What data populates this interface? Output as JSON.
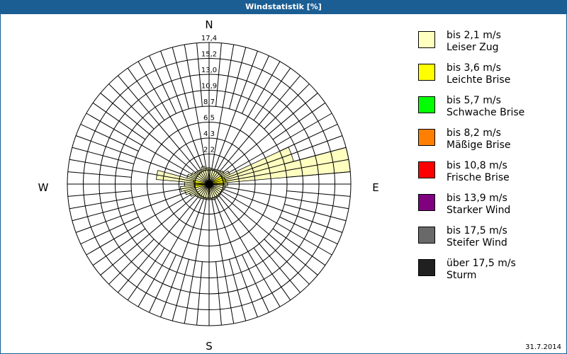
{
  "title": "Windstatistik [%]",
  "date": "31.7.2014",
  "chart_data": {
    "type": "polar-bar",
    "title": "Windstatistik [%]",
    "directions": [
      "N",
      "E",
      "S",
      "W"
    ],
    "ring_labels": [
      "2,2",
      "4,3",
      "6,5",
      "8,7",
      "10,9",
      "13,0",
      "15,2",
      "17,4"
    ],
    "rmax": 17.4,
    "sector_width_deg": 10,
    "sector_angles_deg": [
      0,
      10,
      20,
      30,
      40,
      50,
      60,
      70,
      80,
      90,
      100,
      110,
      120,
      130,
      140,
      150,
      160,
      170,
      180,
      190,
      200,
      210,
      220,
      230,
      240,
      250,
      260,
      270,
      280,
      290,
      300,
      310,
      320,
      330,
      340,
      350
    ],
    "series": [
      {
        "name": "bis 2,1 m/s Leiser Zug",
        "color": "#ffffc0",
        "values": [
          0.3,
          0.2,
          0.2,
          0.3,
          0.4,
          0.6,
          1.2,
          10.0,
          17.4,
          0.6,
          0.3,
          0.2,
          0.1,
          0.1,
          0.2,
          0.2,
          0.3,
          0.2,
          0.2,
          0.2,
          0.2,
          0.3,
          0.4,
          0.5,
          1.0,
          1.5,
          2.0,
          1.4,
          5.3,
          1.2,
          0.8,
          0.5,
          0.4,
          0.3,
          0.6,
          0.3
        ]
      },
      {
        "name": "bis 3,6 m/s Leichte Brise",
        "color": "#ffff00",
        "values": [
          0,
          0,
          0,
          0,
          0,
          0,
          0.1,
          0.3,
          0.4,
          0.1,
          0,
          0,
          0,
          0,
          0,
          0,
          0,
          0,
          0,
          0,
          0,
          0,
          0,
          0,
          0,
          0,
          0.1,
          0.1,
          0.2,
          0,
          0,
          0,
          0,
          0,
          0,
          0
        ]
      },
      {
        "name": "bis 5,7 m/s Schwache Brise",
        "color": "#00ff00",
        "values": []
      },
      {
        "name": "bis 8,2 m/s Mäßige Brise",
        "color": "#ff8000",
        "values": []
      },
      {
        "name": "bis 10,8 m/s Frische Brise",
        "color": "#ff0000",
        "values": []
      },
      {
        "name": "bis 13,9 m/s Starker Wind",
        "color": "#800080",
        "values": []
      },
      {
        "name": "bis 17,5 m/s Steifer Wind",
        "color": "#696969",
        "values": []
      },
      {
        "name": "über 17,5 m/s Sturm",
        "color": "#202020",
        "values": []
      }
    ]
  },
  "legend": [
    {
      "line1": "bis 2,1 m/s",
      "line2": "Leiser Zug",
      "color": "#ffffc0"
    },
    {
      "line1": "bis 3,6 m/s",
      "line2": "Leichte Brise",
      "color": "#ffff00"
    },
    {
      "line1": "bis 5,7 m/s",
      "line2": "Schwache Brise",
      "color": "#00ff00"
    },
    {
      "line1": "bis 8,2 m/s",
      "line2": "Mäßige Brise",
      "color": "#ff8000"
    },
    {
      "line1": "bis 10,8 m/s",
      "line2": "Frische Brise",
      "color": "#ff0000"
    },
    {
      "line1": "bis 13,9 m/s",
      "line2": "Starker Wind",
      "color": "#800080"
    },
    {
      "line1": "bis 17,5 m/s",
      "line2": "Steifer Wind",
      "color": "#696969"
    },
    {
      "line1": "über 17,5 m/s",
      "line2": "Sturm",
      "color": "#202020"
    }
  ]
}
